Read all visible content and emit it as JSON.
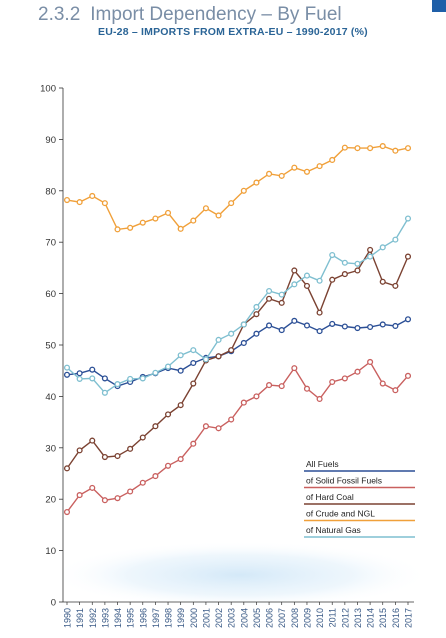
{
  "header": {
    "section_number": "2.3.2",
    "section_title": "Import Dependency – By Fuel",
    "subtitle": "EU-28 – IMPORTS FROM EXTRA-EU – 1990-2017 (%)"
  },
  "chart_data": {
    "type": "line",
    "title": "Import Dependency – By Fuel",
    "subtitle": "EU-28 – IMPORTS FROM EXTRA-EU – 1990-2017 (%)",
    "xlabel": "",
    "ylabel": "",
    "ylim": [
      0,
      100
    ],
    "yticks": [
      0,
      10,
      20,
      30,
      40,
      50,
      60,
      70,
      80,
      90,
      100
    ],
    "grid": false,
    "legend_position": "bottom-right",
    "x": [
      "1990",
      "1991",
      "1992",
      "1993",
      "1994",
      "1995",
      "1996",
      "1997",
      "1998",
      "1999",
      "2000",
      "2001",
      "2002",
      "2003",
      "2004",
      "2005",
      "2006",
      "2007",
      "2008",
      "2009",
      "2010",
      "2011",
      "2012",
      "2013",
      "2014",
      "2015",
      "2016",
      "2017"
    ],
    "series": [
      {
        "name": "All Fuels",
        "color": "#2b4f96",
        "values": [
          44.2,
          44.5,
          45.2,
          43.5,
          42.0,
          42.8,
          43.8,
          44.5,
          45.5,
          45.0,
          46.5,
          47.5,
          47.8,
          48.8,
          50.4,
          52.2,
          53.8,
          52.9,
          54.7,
          53.8,
          52.7,
          54.1,
          53.6,
          53.3,
          53.5,
          54.0,
          53.7,
          55.0
        ]
      },
      {
        "name": "of Solid Fossil Fuels",
        "color": "#c9605f",
        "values": [
          17.5,
          20.8,
          22.2,
          19.8,
          20.2,
          21.5,
          23.2,
          24.5,
          26.5,
          27.8,
          30.8,
          34.2,
          33.8,
          35.5,
          38.8,
          40.0,
          42.2,
          42.0,
          45.5,
          41.5,
          39.5,
          42.8,
          43.5,
          44.8,
          46.7,
          42.5,
          41.2,
          44.0
        ]
      },
      {
        "name": "of Hard Coal",
        "color": "#7b4232",
        "values": [
          26.0,
          29.5,
          31.4,
          28.2,
          28.4,
          29.8,
          32.0,
          34.2,
          36.5,
          38.3,
          42.5,
          47.0,
          47.8,
          49.0,
          54.0,
          56.0,
          59.0,
          58.2,
          64.5,
          61.5,
          56.3,
          62.7,
          63.8,
          64.5,
          68.5,
          62.3,
          61.5,
          67.2
        ]
      },
      {
        "name": "of Crude and NGL",
        "color": "#f0a03a",
        "values": [
          78.2,
          77.8,
          79.0,
          77.6,
          72.5,
          72.8,
          73.8,
          74.6,
          75.7,
          72.6,
          74.2,
          76.6,
          75.2,
          77.6,
          80.0,
          81.6,
          83.3,
          82.9,
          84.5,
          83.7,
          84.8,
          86.0,
          88.4,
          88.3,
          88.3,
          88.7,
          87.8,
          88.3
        ]
      },
      {
        "name": "of Natural Gas",
        "color": "#7fbfd0",
        "values": [
          45.6,
          43.4,
          43.5,
          40.7,
          42.4,
          43.4,
          43.5,
          44.6,
          45.8,
          48.0,
          49.0,
          47.2,
          51.0,
          52.2,
          54.0,
          57.4,
          60.5,
          59.8,
          61.8,
          63.5,
          62.5,
          67.5,
          66.0,
          65.8,
          67.2,
          69.0,
          70.5,
          74.6
        ]
      }
    ]
  }
}
